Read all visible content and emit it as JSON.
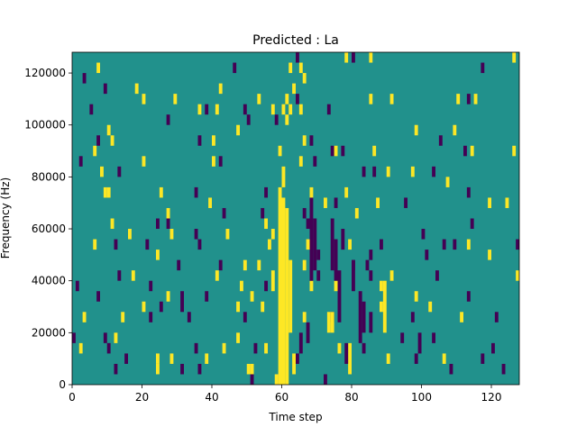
{
  "chart_data": {
    "type": "heatmap",
    "title": "Predicted : La",
    "xlabel": "Time step",
    "ylabel": "Frequency (Hz)",
    "x_range": [
      0,
      128
    ],
    "y_range": [
      0,
      128000
    ],
    "x_ticks": [
      0,
      20,
      40,
      60,
      80,
      100,
      120
    ],
    "y_ticks": [
      0,
      20000,
      40000,
      60000,
      80000,
      100000,
      120000
    ],
    "y_tick_labels": [
      "0",
      "20000",
      "40000",
      "60000",
      "80000",
      "100000",
      "120000"
    ],
    "grid": false,
    "legend": "none",
    "n_time_steps": 128,
    "n_frequency_bins": 32,
    "bin_height_hz": 4000,
    "value_levels": {
      "background": 0,
      "low": -1,
      "high": 1
    },
    "colors": {
      "background": "#21918c",
      "low": "#440154",
      "high": "#fde725"
    },
    "cells": [
      {
        "t": 7,
        "f": 120000,
        "v": 1
      },
      {
        "t": 6,
        "f": 88000,
        "v": 1
      },
      {
        "t": 10,
        "f": 96000,
        "v": 1
      },
      {
        "t": 3,
        "f": 116000,
        "v": -1
      },
      {
        "t": 9,
        "f": 112000,
        "v": -1
      },
      {
        "t": 18,
        "f": 112000,
        "v": 1
      },
      {
        "t": 20,
        "f": 108000,
        "v": 1
      },
      {
        "t": 5,
        "f": 104000,
        "v": -1
      },
      {
        "t": 29,
        "f": 108000,
        "v": 1
      },
      {
        "t": 42,
        "f": 112000,
        "v": 1
      },
      {
        "t": 46,
        "f": 120000,
        "v": -1
      },
      {
        "t": 62,
        "f": 120000,
        "v": 1
      },
      {
        "t": 64,
        "f": 124000,
        "v": -1
      },
      {
        "t": 65,
        "f": 120000,
        "v": 1
      },
      {
        "t": 66,
        "f": 116000,
        "v": 1
      },
      {
        "t": 63,
        "f": 112000,
        "v": 1
      },
      {
        "t": 78,
        "f": 124000,
        "v": 1
      },
      {
        "t": 80,
        "f": 124000,
        "v": -1
      },
      {
        "t": 85,
        "f": 124000,
        "v": 1
      },
      {
        "t": 117,
        "f": 120000,
        "v": -1
      },
      {
        "t": 126,
        "f": 124000,
        "v": 1
      },
      {
        "t": 53,
        "f": 108000,
        "v": 1
      },
      {
        "t": 57,
        "f": 104000,
        "v": 1
      },
      {
        "t": 58,
        "f": 100000,
        "v": -1
      },
      {
        "t": 60,
        "f": 104000,
        "v": 1
      },
      {
        "t": 61,
        "f": 108000,
        "v": 1
      },
      {
        "t": 62,
        "f": 104000,
        "v": 1
      },
      {
        "t": 64,
        "f": 108000,
        "v": -1
      },
      {
        "t": 65,
        "f": 104000,
        "v": 1
      },
      {
        "t": 73,
        "f": 104000,
        "v": -1
      },
      {
        "t": 85,
        "f": 108000,
        "v": 1
      },
      {
        "t": 91,
        "f": 108000,
        "v": 1
      },
      {
        "t": 110,
        "f": 108000,
        "v": 1
      },
      {
        "t": 113,
        "f": 108000,
        "v": -1
      },
      {
        "t": 115,
        "f": 108000,
        "v": 1
      },
      {
        "t": 27,
        "f": 100000,
        "v": -1
      },
      {
        "t": 36,
        "f": 104000,
        "v": 1
      },
      {
        "t": 38,
        "f": 104000,
        "v": -1
      },
      {
        "t": 41,
        "f": 104000,
        "v": 1
      },
      {
        "t": 49,
        "f": 104000,
        "v": -1
      },
      {
        "t": 50,
        "f": 100000,
        "v": -1
      },
      {
        "t": 47,
        "f": 96000,
        "v": 1
      },
      {
        "t": 61,
        "f": 100000,
        "v": 1
      },
      {
        "t": 7,
        "f": 92000,
        "v": -1
      },
      {
        "t": 11,
        "f": 92000,
        "v": 1
      },
      {
        "t": 36,
        "f": 92000,
        "v": -1
      },
      {
        "t": 40,
        "f": 92000,
        "v": 1
      },
      {
        "t": 59,
        "f": 88000,
        "v": 1
      },
      {
        "t": 66,
        "f": 92000,
        "v": 1
      },
      {
        "t": 68,
        "f": 92000,
        "v": -1
      },
      {
        "t": 74,
        "f": 88000,
        "v": -1
      },
      {
        "t": 75,
        "f": 88000,
        "v": 1
      },
      {
        "t": 77,
        "f": 88000,
        "v": -1
      },
      {
        "t": 86,
        "f": 88000,
        "v": 1
      },
      {
        "t": 98,
        "f": 96000,
        "v": 1
      },
      {
        "t": 105,
        "f": 92000,
        "v": -1
      },
      {
        "t": 109,
        "f": 96000,
        "v": 1
      },
      {
        "t": 112,
        "f": 88000,
        "v": -1
      },
      {
        "t": 114,
        "f": 88000,
        "v": 1
      },
      {
        "t": 126,
        "f": 88000,
        "v": 1
      },
      {
        "t": 2,
        "f": 84000,
        "v": -1
      },
      {
        "t": 8,
        "f": 80000,
        "v": 1
      },
      {
        "t": 13,
        "f": 80000,
        "v": -1
      },
      {
        "t": 20,
        "f": 84000,
        "v": 1
      },
      {
        "t": 40,
        "f": 84000,
        "v": 1
      },
      {
        "t": 42,
        "f": 84000,
        "v": -1
      },
      {
        "t": 65,
        "f": 84000,
        "v": 1
      },
      {
        "t": 69,
        "f": 84000,
        "v": -1
      },
      {
        "t": 83,
        "f": 80000,
        "v": -1
      },
      {
        "t": 86,
        "f": 80000,
        "v": -1
      },
      {
        "t": 90,
        "f": 80000,
        "v": 1
      },
      {
        "t": 97,
        "f": 80000,
        "v": 1
      },
      {
        "t": 103,
        "f": 80000,
        "v": -1
      },
      {
        "t": 107,
        "f": 76000,
        "v": 1
      },
      {
        "t": 9,
        "f": 72000,
        "v": 1
      },
      {
        "t": 10,
        "f": 72000,
        "v": 1
      },
      {
        "t": 25,
        "f": 72000,
        "v": 1
      },
      {
        "t": 35,
        "f": 72000,
        "v": -1
      },
      {
        "t": 39,
        "f": 68000,
        "v": 1
      },
      {
        "t": 55,
        "f": 72000,
        "v": -1
      },
      {
        "t": 68,
        "f": 72000,
        "v": 1
      },
      {
        "t": 72,
        "f": 68000,
        "v": 1
      },
      {
        "t": 75,
        "f": 68000,
        "v": -1
      },
      {
        "t": 78,
        "f": 72000,
        "v": 1
      },
      {
        "t": 87,
        "f": 68000,
        "v": 1
      },
      {
        "t": 95,
        "f": 68000,
        "v": -1
      },
      {
        "t": 113,
        "f": 72000,
        "v": -1
      },
      {
        "t": 119,
        "f": 68000,
        "v": 1
      },
      {
        "t": 124,
        "f": 68000,
        "v": 1
      },
      {
        "t": 11,
        "f": 60000,
        "v": 1
      },
      {
        "t": 24,
        "f": 60000,
        "v": -1
      },
      {
        "t": 27,
        "f": 64000,
        "v": 1
      },
      {
        "t": 27,
        "f": 60000,
        "v": -1
      },
      {
        "t": 43,
        "f": 64000,
        "v": -1
      },
      {
        "t": 54,
        "f": 64000,
        "v": -1
      },
      {
        "t": 55,
        "f": 60000,
        "v": 1
      },
      {
        "t": 66,
        "f": 64000,
        "v": -1
      },
      {
        "t": 67,
        "f": 60000,
        "v": -1
      },
      {
        "t": 81,
        "f": 64000,
        "v": 1
      },
      {
        "t": 100,
        "f": 56000,
        "v": -1
      },
      {
        "t": 114,
        "f": 60000,
        "v": -1
      },
      {
        "t": 6,
        "f": 52000,
        "v": 1
      },
      {
        "t": 12,
        "f": 52000,
        "v": -1
      },
      {
        "t": 16,
        "f": 56000,
        "v": 1
      },
      {
        "t": 21,
        "f": 52000,
        "v": -1
      },
      {
        "t": 28,
        "f": 56000,
        "v": 1
      },
      {
        "t": 35,
        "f": 56000,
        "v": -1
      },
      {
        "t": 36,
        "f": 52000,
        "v": -1
      },
      {
        "t": 44,
        "f": 56000,
        "v": 1
      },
      {
        "t": 56,
        "f": 52000,
        "v": 1
      },
      {
        "t": 57,
        "f": 56000,
        "v": 1
      },
      {
        "t": 67,
        "f": 52000,
        "v": 1
      },
      {
        "t": 70,
        "f": 48000,
        "v": -1
      },
      {
        "t": 79,
        "f": 52000,
        "v": 1
      },
      {
        "t": 85,
        "f": 48000,
        "v": -1
      },
      {
        "t": 88,
        "f": 52000,
        "v": -1
      },
      {
        "t": 101,
        "f": 48000,
        "v": -1
      },
      {
        "t": 106,
        "f": 52000,
        "v": -1
      },
      {
        "t": 109,
        "f": 52000,
        "v": -1
      },
      {
        "t": 113,
        "f": 52000,
        "v": 1
      },
      {
        "t": 119,
        "f": 48000,
        "v": 1
      },
      {
        "t": 127,
        "f": 52000,
        "v": -1
      },
      {
        "t": 13,
        "f": 40000,
        "v": -1
      },
      {
        "t": 17,
        "f": 40000,
        "v": 1
      },
      {
        "t": 24,
        "f": 48000,
        "v": 1
      },
      {
        "t": 30,
        "f": 44000,
        "v": -1
      },
      {
        "t": 41,
        "f": 40000,
        "v": 1
      },
      {
        "t": 42,
        "f": 44000,
        "v": -1
      },
      {
        "t": 49,
        "f": 44000,
        "v": 1
      },
      {
        "t": 53,
        "f": 44000,
        "v": 1
      },
      {
        "t": 66,
        "f": 44000,
        "v": 1
      },
      {
        "t": 70,
        "f": 40000,
        "v": -1
      },
      {
        "t": 80,
        "f": 44000,
        "v": -1
      },
      {
        "t": 84,
        "f": 44000,
        "v": -1
      },
      {
        "t": 85,
        "f": 40000,
        "v": -1
      },
      {
        "t": 91,
        "f": 40000,
        "v": 1
      },
      {
        "t": 104,
        "f": 40000,
        "v": -1
      },
      {
        "t": 127,
        "f": 40000,
        "v": 1
      },
      {
        "t": 1,
        "f": 36000,
        "v": -1
      },
      {
        "t": 7,
        "f": 32000,
        "v": -1
      },
      {
        "t": 22,
        "f": 36000,
        "v": -1
      },
      {
        "t": 27,
        "f": 32000,
        "v": 1
      },
      {
        "t": 38,
        "f": 32000,
        "v": -1
      },
      {
        "t": 48,
        "f": 36000,
        "v": 1
      },
      {
        "t": 51,
        "f": 32000,
        "v": 1
      },
      {
        "t": 55,
        "f": 36000,
        "v": -1
      },
      {
        "t": 68,
        "f": 36000,
        "v": 1
      },
      {
        "t": 75,
        "f": 36000,
        "v": 1
      },
      {
        "t": 88,
        "f": 36000,
        "v": 1
      },
      {
        "t": 98,
        "f": 32000,
        "v": 1
      },
      {
        "t": 113,
        "f": 32000,
        "v": -1
      },
      {
        "t": 3,
        "f": 24000,
        "v": 1
      },
      {
        "t": 14,
        "f": 24000,
        "v": 1
      },
      {
        "t": 20,
        "f": 28000,
        "v": 1
      },
      {
        "t": 22,
        "f": 24000,
        "v": -1
      },
      {
        "t": 25,
        "f": 28000,
        "v": -1
      },
      {
        "t": 33,
        "f": 24000,
        "v": -1
      },
      {
        "t": 47,
        "f": 28000,
        "v": 1
      },
      {
        "t": 49,
        "f": 24000,
        "v": -1
      },
      {
        "t": 54,
        "f": 28000,
        "v": 1
      },
      {
        "t": 66,
        "f": 24000,
        "v": 1
      },
      {
        "t": 74,
        "f": 24000,
        "v": -1
      },
      {
        "t": 88,
        "f": 28000,
        "v": 1
      },
      {
        "t": 97,
        "f": 24000,
        "v": -1
      },
      {
        "t": 102,
        "f": 28000,
        "v": 1
      },
      {
        "t": 111,
        "f": 24000,
        "v": 1
      },
      {
        "t": 121,
        "f": 24000,
        "v": -1
      },
      {
        "t": 0,
        "f": 16000,
        "v": -1
      },
      {
        "t": 2,
        "f": 12000,
        "v": 1
      },
      {
        "t": 9,
        "f": 16000,
        "v": -1
      },
      {
        "t": 10,
        "f": 12000,
        "v": -1
      },
      {
        "t": 12,
        "f": 16000,
        "v": 1
      },
      {
        "t": 15,
        "f": 8000,
        "v": -1
      },
      {
        "t": 24,
        "f": 8000,
        "v": 1
      },
      {
        "t": 28,
        "f": 8000,
        "v": 1
      },
      {
        "t": 31,
        "f": 4000,
        "v": -1
      },
      {
        "t": 35,
        "f": 12000,
        "v": -1
      },
      {
        "t": 38,
        "f": 8000,
        "v": 1
      },
      {
        "t": 43,
        "f": 12000,
        "v": 1
      },
      {
        "t": 47,
        "f": 16000,
        "v": 1
      },
      {
        "t": 52,
        "f": 12000,
        "v": -1
      },
      {
        "t": 55,
        "f": 12000,
        "v": 1
      },
      {
        "t": 64,
        "f": 8000,
        "v": -1
      },
      {
        "t": 76,
        "f": 12000,
        "v": 1
      },
      {
        "t": 83,
        "f": 12000,
        "v": -1
      },
      {
        "t": 94,
        "f": 16000,
        "v": -1
      },
      {
        "t": 98,
        "f": 8000,
        "v": -1
      },
      {
        "t": 103,
        "f": 16000,
        "v": -1
      },
      {
        "t": 106,
        "f": 8000,
        "v": 1
      },
      {
        "t": 117,
        "f": 8000,
        "v": -1
      },
      {
        "t": 120,
        "f": 12000,
        "v": -1
      },
      {
        "t": 12,
        "f": 4000,
        "v": -1
      },
      {
        "t": 24,
        "f": 4000,
        "v": 1
      },
      {
        "t": 36,
        "f": 4000,
        "v": -1
      },
      {
        "t": 51,
        "f": 0,
        "v": -1
      },
      {
        "t": 58,
        "f": 0,
        "v": 1
      },
      {
        "t": 72,
        "f": 0,
        "v": -1
      },
      {
        "t": 108,
        "f": 4000,
        "v": -1
      },
      {
        "t": 123,
        "f": 4000,
        "v": -1
      }
    ],
    "runs": [
      {
        "t": 59,
        "f_from": 0,
        "f_to": 76000,
        "v": 1
      },
      {
        "t": 60,
        "f_from": 0,
        "f_to": 72000,
        "v": 1
      },
      {
        "t": 61,
        "f_from": 0,
        "f_to": 68000,
        "v": 1
      },
      {
        "t": 62,
        "f_from": 20000,
        "f_to": 48000,
        "v": 1
      },
      {
        "t": 63,
        "f_from": 4000,
        "f_to": 12000,
        "v": 1
      },
      {
        "t": 68,
        "f_from": 40000,
        "f_to": 72000,
        "v": -1
      },
      {
        "t": 69,
        "f_from": 44000,
        "f_to": 64000,
        "v": -1
      },
      {
        "t": 74,
        "f_from": 44000,
        "f_to": 64000,
        "v": -1
      },
      {
        "t": 75,
        "f_from": 40000,
        "f_to": 56000,
        "v": -1
      },
      {
        "t": 76,
        "f_from": 24000,
        "f_to": 44000,
        "v": -1
      },
      {
        "t": 82,
        "f_from": 16000,
        "f_to": 36000,
        "v": -1
      },
      {
        "t": 83,
        "f_from": 20000,
        "f_to": 32000,
        "v": -1
      },
      {
        "t": 89,
        "f_from": 20000,
        "f_to": 40000,
        "v": 1
      },
      {
        "t": 79,
        "f_from": 4000,
        "f_to": 16000,
        "v": 1
      },
      {
        "t": 50,
        "f_from": 4000,
        "f_to": 8000,
        "v": 1
      },
      {
        "t": 51,
        "f_from": 4000,
        "f_to": 8000,
        "v": 1
      },
      {
        "t": 65,
        "f_from": 12000,
        "f_to": 20000,
        "v": -1
      },
      {
        "t": 67,
        "f_from": 16000,
        "f_to": 24000,
        "v": -1
      },
      {
        "t": 73,
        "f_from": 20000,
        "f_to": 28000,
        "v": 1
      },
      {
        "t": 74,
        "f_from": 20000,
        "f_to": 28000,
        "v": 1
      },
      {
        "t": 90,
        "f_from": 8000,
        "f_to": 12000,
        "v": 1
      },
      {
        "t": 78,
        "f_from": 8000,
        "f_to": 16000,
        "v": -1
      },
      {
        "t": 85,
        "f_from": 20000,
        "f_to": 28000,
        "v": -1
      },
      {
        "t": 99,
        "f_from": 12000,
        "f_to": 20000,
        "v": -1
      },
      {
        "t": 57,
        "f_from": 36000,
        "f_to": 44000,
        "v": 1
      },
      {
        "t": 31,
        "f_from": 28000,
        "f_to": 36000,
        "v": -1
      },
      {
        "t": 60,
        "f_from": 76000,
        "f_to": 84000,
        "v": 1
      },
      {
        "t": 77,
        "f_from": 52000,
        "f_to": 60000,
        "v": -1
      },
      {
        "t": 80,
        "f_from": 36000,
        "f_to": 48000,
        "v": -1
      }
    ]
  }
}
